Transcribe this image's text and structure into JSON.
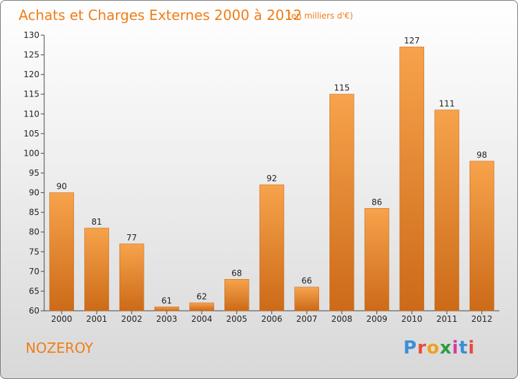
{
  "title": "Achats et Charges Externes 2000 à 2012",
  "subtitle": "(en milliers d'€)",
  "commune": "NOZEROY",
  "logo": "Proxiti",
  "colors": {
    "bar_light": "#f7a04a",
    "bar_dark": "#cc6a18",
    "title": "#f07d17"
  },
  "chart_data": {
    "type": "bar",
    "title": "Achats et Charges Externes 2000 à 2012",
    "subtitle": "(en milliers d'€)",
    "xlabel": "",
    "ylabel": "",
    "categories": [
      "2000",
      "2001",
      "2002",
      "2003",
      "2004",
      "2005",
      "2006",
      "2007",
      "2008",
      "2009",
      "2010",
      "2011",
      "2012"
    ],
    "values": [
      90,
      81,
      77,
      61,
      62,
      68,
      92,
      66,
      115,
      86,
      127,
      111,
      98
    ],
    "ylim": [
      60,
      130
    ],
    "yticks": [
      60,
      65,
      70,
      75,
      80,
      85,
      90,
      95,
      100,
      105,
      110,
      115,
      120,
      125,
      130
    ],
    "grid": false,
    "legend": "none"
  }
}
